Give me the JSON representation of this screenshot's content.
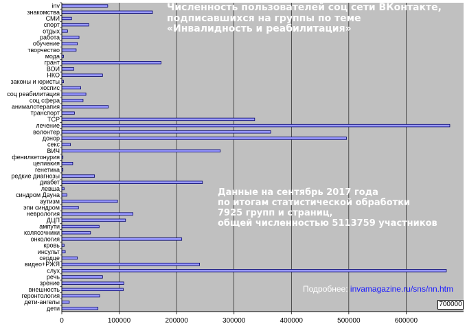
{
  "chart_data": {
    "type": "bar",
    "orientation": "horizontal",
    "title": "Численность пользователей соц сети ВКонтакте,\nподписавшихся на группы по теме\n«Инвалидность и реабилитация»",
    "xlim": [
      0,
      700000
    ],
    "x_ticks": [
      "0",
      "100000",
      "200000",
      "300000",
      "400000",
      "500000",
      "600000"
    ],
    "x_max_label": "700000",
    "grid": true,
    "colors": {
      "plot_bg": "#c0c0c0",
      "bar_fill": "#9999ff",
      "bar_edge": "#000066",
      "grid": "#000000"
    },
    "categories": [
      "inv",
      "знакомства",
      "СМИ",
      "спорт",
      "отдых",
      "работа",
      "обучение",
      "творчество",
      "мода",
      "грант",
      "ВОИ",
      "НКО",
      "законы и юристы",
      "хоспис",
      "соц реабилитация",
      "соц сфера",
      "анималотерапия",
      "транспорт",
      "ТСР",
      "лечение",
      "волонтер",
      "донор",
      "секс",
      "ВИЧ",
      "фенилкетонурия",
      "целиакия",
      "генетика",
      "редкие диагнозы",
      "диабет",
      "левша",
      "синдром Дауна",
      "аутизм",
      "эпи синдром",
      "неврология",
      "ДЦП",
      "ампути",
      "колясочники",
      "онкология",
      "кровь",
      "инсульт",
      "сердце",
      "видео+РЖЯ",
      "слух",
      "речь",
      "зрение",
      "внешность",
      "геронтология",
      "дети-ангелы",
      "дети"
    ],
    "values": [
      80000,
      158000,
      17000,
      47000,
      10000,
      30000,
      27000,
      25000,
      3000,
      173000,
      21000,
      71000,
      3000,
      33000,
      42000,
      37000,
      81000,
      22000,
      336000,
      676000,
      364000,
      496000,
      15000,
      276000,
      2000,
      19000,
      2000,
      57000,
      245000,
      4000,
      9000,
      97000,
      29000,
      124000,
      111000,
      65000,
      50000,
      209000,
      4000,
      6000,
      27000,
      240000,
      670000,
      71000,
      108000,
      107000,
      66000,
      13000,
      63000
    ]
  },
  "note": "Данные на сентябрь 2017 года\nпо итогам статистической обработки\n7925 групп и страниц,\nобщей численностью 5113759 участников",
  "more": {
    "label": "Подробнее:",
    "link": "invamagazine.ru/sns/nn.htm"
  }
}
